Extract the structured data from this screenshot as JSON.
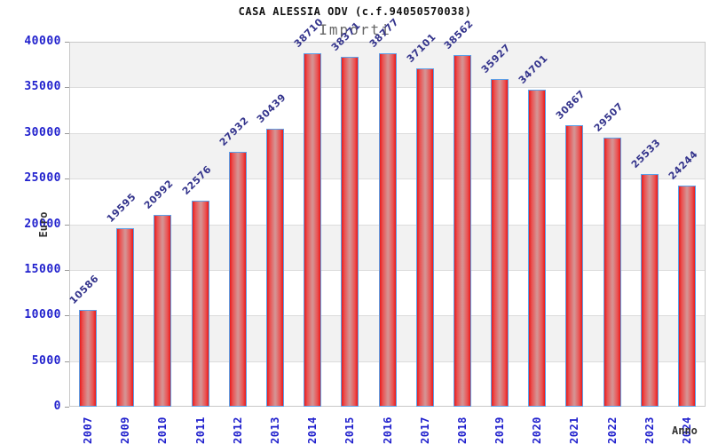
{
  "chart_data": {
    "type": "bar",
    "title": "CASA ALESSIA ODV (c.f.94050570038)",
    "subtitle": "Importi",
    "xlabel": "Anno",
    "ylabel": "Euro",
    "categories": [
      "2007",
      "2009",
      "2010",
      "2011",
      "2012",
      "2013",
      "2014",
      "2015",
      "2016",
      "2017",
      "2018",
      "2019",
      "2020",
      "2021",
      "2022",
      "2023",
      "2024"
    ],
    "values": [
      10586,
      19595,
      20992,
      22576,
      27932,
      30439,
      38710,
      38371,
      38777,
      37101,
      38562,
      35927,
      34701,
      30867,
      29507,
      25533,
      24244
    ],
    "ylim": [
      0,
      40000
    ],
    "yticks": [
      0,
      5000,
      10000,
      15000,
      20000,
      25000,
      30000,
      35000,
      40000
    ],
    "grid": true,
    "legend": "none",
    "colors": {
      "bar_fill": "#e81b1b",
      "bar_highlight": "#d69191",
      "bar_border": "#5ca0e8",
      "tick_label": "#2121cd",
      "value_label": "#34348c",
      "band_shaded": "#f2f2f2",
      "band_plain": "#ffffff",
      "gridline": "#dcdcdc",
      "title": "#111111",
      "subtitle": "#666666",
      "axis_title": "#333333"
    }
  }
}
